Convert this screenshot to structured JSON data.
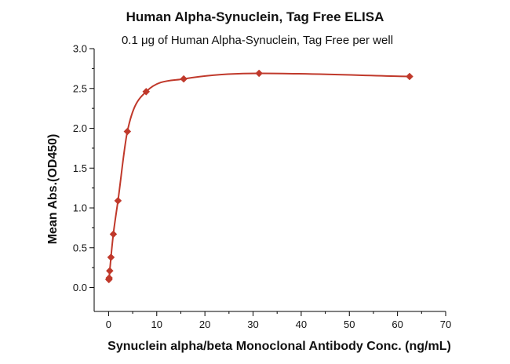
{
  "chart_data": {
    "type": "scatter",
    "title": "Human Alpha-Synuclein, Tag Free ELISA",
    "subtitle": "0.1 μg of Human Alpha-Synuclein, Tag Free per well",
    "xlabel": "Synuclein alpha/beta Monoclonal Antibody Conc. (ng/mL)",
    "ylabel": "Mean Abs.(OD450)",
    "xlim": [
      -3,
      70
    ],
    "ylim": [
      -0.3,
      3.0
    ],
    "xticks": [
      0,
      10,
      20,
      30,
      40,
      50,
      60,
      70
    ],
    "yticks": [
      0.0,
      0.5,
      1.0,
      1.5,
      2.0,
      2.5,
      3.0
    ],
    "xtick_labels": [
      "0",
      "10",
      "20",
      "30",
      "40",
      "50",
      "60",
      "70"
    ],
    "ytick_labels": [
      "0.0",
      "0.5",
      "1.0",
      "1.5",
      "2.0",
      "2.5",
      "3.0"
    ],
    "grid": false,
    "series": [
      {
        "color": "#c0392b",
        "marker": "diamond",
        "fit_curve": true,
        "points": [
          {
            "x": 0.06,
            "y": 0.1
          },
          {
            "x": 0.12,
            "y": 0.12
          },
          {
            "x": 0.24,
            "y": 0.21
          },
          {
            "x": 0.49,
            "y": 0.38
          },
          {
            "x": 0.98,
            "y": 0.67
          },
          {
            "x": 1.95,
            "y": 1.09
          },
          {
            "x": 3.9,
            "y": 1.96
          },
          {
            "x": 7.8,
            "y": 2.46
          },
          {
            "x": 15.6,
            "y": 2.62
          },
          {
            "x": 31.25,
            "y": 2.69
          },
          {
            "x": 62.5,
            "y": 2.65
          }
        ]
      }
    ]
  }
}
